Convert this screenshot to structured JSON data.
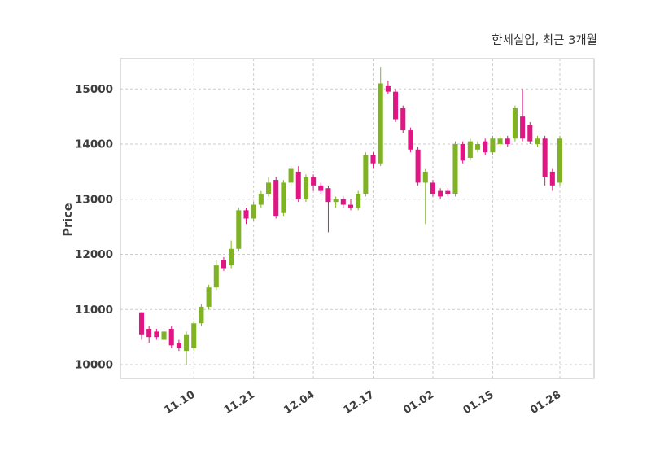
{
  "figure": {
    "title": "한세실업, 최근 3개월",
    "ylabel": "Price"
  },
  "chart_data": {
    "type": "candlestick",
    "title": "한세실업, 최근 3개월",
    "ylabel": "Price",
    "xlabel": "",
    "grid": true,
    "legend": false,
    "ylim": [
      9750,
      15550
    ],
    "yticks": [
      10000,
      11000,
      12000,
      13000,
      14000,
      15000
    ],
    "xticks": [
      {
        "index": 7,
        "label": "11.10"
      },
      {
        "index": 15,
        "label": "11.21"
      },
      {
        "index": 23,
        "label": "12.04"
      },
      {
        "index": 31,
        "label": "12.17"
      },
      {
        "index": 39,
        "label": "01.02"
      },
      {
        "index": 47,
        "label": "01.15"
      },
      {
        "index": 56,
        "label": "01.28"
      }
    ],
    "up_color": "#7fb324",
    "down_color": "#df1683",
    "candles_format": [
      "open",
      "high",
      "low",
      "close"
    ],
    "candles": [
      [
        10950,
        10950,
        10450,
        10550
      ],
      [
        10650,
        10700,
        10400,
        10500
      ],
      [
        10600,
        10650,
        10450,
        10500
      ],
      [
        10450,
        10700,
        10350,
        10600
      ],
      [
        10650,
        10700,
        10300,
        10350
      ],
      [
        10400,
        10450,
        10250,
        10300
      ],
      [
        10250,
        10600,
        10000,
        10550
      ],
      [
        10300,
        10800,
        10250,
        10750
      ],
      [
        10750,
        11100,
        10700,
        11050
      ],
      [
        11050,
        11450,
        11000,
        11400
      ],
      [
        11400,
        11900,
        11350,
        11800
      ],
      [
        11900,
        11950,
        11700,
        11750
      ],
      [
        11800,
        12250,
        11750,
        12100
      ],
      [
        12100,
        12850,
        12050,
        12800
      ],
      [
        12800,
        12850,
        12550,
        12650
      ],
      [
        12650,
        12950,
        12600,
        12900
      ],
      [
        12900,
        13150,
        12850,
        13100
      ],
      [
        13100,
        13400,
        13050,
        13300
      ],
      [
        13350,
        13400,
        12650,
        12700
      ],
      [
        12750,
        13350,
        12700,
        13300
      ],
      [
        13300,
        13600,
        13250,
        13550
      ],
      [
        13500,
        13600,
        12950,
        13000
      ],
      [
        13000,
        13450,
        12950,
        13400
      ],
      [
        13400,
        13450,
        13150,
        13250
      ],
      [
        13250,
        13300,
        13100,
        13150
      ],
      [
        13200,
        13250,
        12400,
        12950
      ],
      [
        12950,
        13050,
        12850,
        13000
      ],
      [
        13000,
        13050,
        12850,
        12900
      ],
      [
        12900,
        13000,
        12800,
        12850
      ],
      [
        12850,
        13150,
        12800,
        13100
      ],
      [
        13100,
        13850,
        13050,
        13800
      ],
      [
        13800,
        13850,
        13550,
        13650
      ],
      [
        13650,
        15400,
        13600,
        15100
      ],
      [
        15050,
        15150,
        14900,
        14950
      ],
      [
        14950,
        15000,
        14400,
        14450
      ],
      [
        14650,
        14700,
        14200,
        14250
      ],
      [
        14250,
        14300,
        13850,
        13900
      ],
      [
        13900,
        13950,
        13250,
        13300
      ],
      [
        13300,
        13550,
        12550,
        13500
      ],
      [
        13300,
        13350,
        13050,
        13100
      ],
      [
        13150,
        13200,
        13000,
        13050
      ],
      [
        13150,
        13200,
        13050,
        13100
      ],
      [
        13100,
        14050,
        13050,
        14000
      ],
      [
        14000,
        14050,
        13650,
        13700
      ],
      [
        13750,
        14100,
        13700,
        14050
      ],
      [
        13900,
        14050,
        13850,
        14000
      ],
      [
        14050,
        14100,
        13800,
        13850
      ],
      [
        13850,
        14150,
        13800,
        14100
      ],
      [
        14000,
        14150,
        13950,
        14100
      ],
      [
        14100,
        14150,
        13950,
        14000
      ],
      [
        14100,
        14700,
        14050,
        14650
      ],
      [
        14500,
        15000,
        14050,
        14100
      ],
      [
        14350,
        14400,
        14000,
        14050
      ],
      [
        14000,
        14150,
        13950,
        14100
      ],
      [
        14100,
        14150,
        13250,
        13400
      ],
      [
        13500,
        13550,
        13150,
        13250
      ],
      [
        13300,
        14150,
        13250,
        14100
      ]
    ]
  }
}
